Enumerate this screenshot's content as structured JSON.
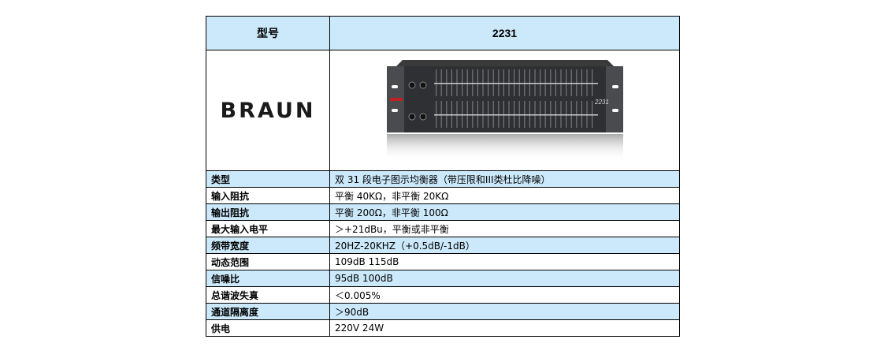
{
  "header": {
    "label": "型号",
    "model": "2231"
  },
  "brand_logo": "BRAUN",
  "device_image": {
    "model_print": "2231"
  },
  "specs": [
    {
      "key": "类型",
      "value": "双 31 段电子图示均衡器（带压限和III类杜比降噪）"
    },
    {
      "key": "输入阻抗",
      "value": "平衡 40KΩ，非平衡 20KΩ"
    },
    {
      "key": "输出阻抗",
      "value": "平衡 200Ω，非平衡 100Ω"
    },
    {
      "key": "最大输入电平",
      "value": "＞+21dBu，平衡或非平衡"
    },
    {
      "key": "频带宽度",
      "value": "20HZ-20KHZ（+0.5dB/-1dB）"
    },
    {
      "key": "动态范围",
      "value": "109dB   115dB"
    },
    {
      "key": "信噪比",
      "value": "95dB   100dB"
    },
    {
      "key": "总谐波失真",
      "value": "＜0.005%"
    },
    {
      "key": "通道隔离度",
      "value": "＞90dB"
    },
    {
      "key": "供电",
      "value": "220V   24W"
    }
  ]
}
